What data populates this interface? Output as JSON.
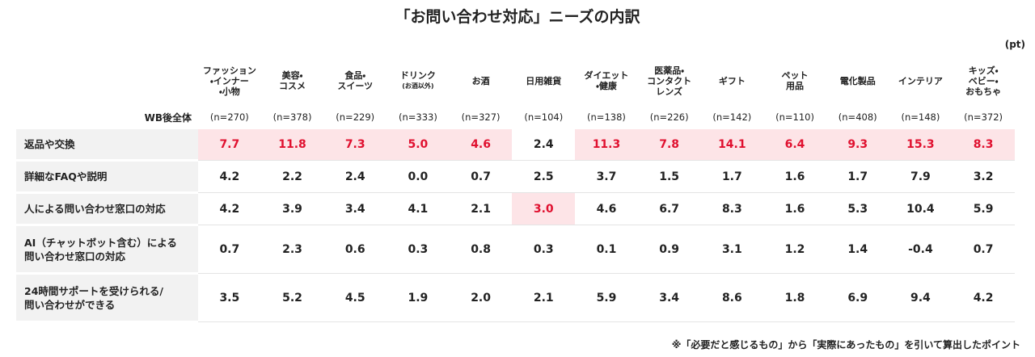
{
  "header": {
    "title": "「お問い合わせ対応」ニーズの内訳",
    "unit": "(pt)"
  },
  "table": {
    "corner": "WB後全体",
    "columns": [
      {
        "label": "ファッション\n・インナー\n・小物",
        "n": "(n=270)"
      },
      {
        "label": "美容・\nコスメ",
        "n": "(n=378)"
      },
      {
        "label": "食品・\nスイーツ",
        "n": "(n=229)"
      },
      {
        "label": "ドリンク",
        "sub": "(お酒以外)",
        "n": "(n=333)"
      },
      {
        "label": "お酒",
        "n": "(n=327)"
      },
      {
        "label": "日用雑貨",
        "n": "(n=104)"
      },
      {
        "label": "ダイエット\n・健康",
        "n": "(n=138)"
      },
      {
        "label": "医薬品・\nコンタクト\nレンズ",
        "n": "(n=226)"
      },
      {
        "label": "ギフト",
        "n": "(n=142)"
      },
      {
        "label": "ペット\n用品",
        "n": "(n=110)"
      },
      {
        "label": "電化製品",
        "n": "(n=408)"
      },
      {
        "label": "インテリア",
        "n": "(n=148)"
      },
      {
        "label": "キッズ・\nベビー・\nおもちゃ",
        "n": "(n=372)"
      }
    ],
    "highlight_color": "#fde4e7",
    "highlight_text_color": "#e0102f",
    "rows": [
      {
        "label": "返品や交換",
        "cells": [
          "7.7",
          "11.8",
          "7.3",
          "5.0",
          "4.6",
          "2.4",
          "11.3",
          "7.8",
          "14.1",
          "6.4",
          "9.3",
          "15.3",
          "8.3"
        ],
        "highlight": [
          true,
          true,
          true,
          true,
          true,
          false,
          true,
          true,
          true,
          true,
          true,
          true,
          true
        ]
      },
      {
        "label": "詳細なFAQや説明",
        "cells": [
          "4.2",
          "2.2",
          "2.4",
          "0.0",
          "0.7",
          "2.5",
          "3.7",
          "1.5",
          "1.7",
          "1.6",
          "1.7",
          "7.9",
          "3.2"
        ],
        "highlight": [
          false,
          false,
          false,
          false,
          false,
          false,
          false,
          false,
          false,
          false,
          false,
          false,
          false
        ]
      },
      {
        "label": "人による問い合わせ窓口の対応",
        "cells": [
          "4.2",
          "3.9",
          "3.4",
          "4.1",
          "2.1",
          "3.0",
          "4.6",
          "6.7",
          "8.3",
          "1.6",
          "5.3",
          "10.4",
          "5.9"
        ],
        "highlight": [
          false,
          false,
          false,
          false,
          false,
          true,
          false,
          false,
          false,
          false,
          false,
          false,
          false
        ]
      },
      {
        "label": "AI（チャットボット含む）による\n問い合わせ窓口の対応",
        "cells": [
          "0.7",
          "2.3",
          "0.6",
          "0.3",
          "0.8",
          "0.3",
          "0.1",
          "0.9",
          "3.1",
          "1.2",
          "1.4",
          "-0.4",
          "0.7"
        ],
        "highlight": [
          false,
          false,
          false,
          false,
          false,
          false,
          false,
          false,
          false,
          false,
          false,
          false,
          false
        ]
      },
      {
        "label": "24時間サポートを受けられる/\n問い合わせができる",
        "cells": [
          "3.5",
          "5.2",
          "4.5",
          "1.9",
          "2.0",
          "2.1",
          "5.9",
          "3.4",
          "8.6",
          "1.8",
          "6.9",
          "9.4",
          "4.2"
        ],
        "highlight": [
          false,
          false,
          false,
          false,
          false,
          false,
          false,
          false,
          false,
          false,
          false,
          false,
          false
        ]
      }
    ]
  },
  "footnote": "※「必要だと感じるもの」から「実際にあったもの」を引いて算出したポイント"
}
